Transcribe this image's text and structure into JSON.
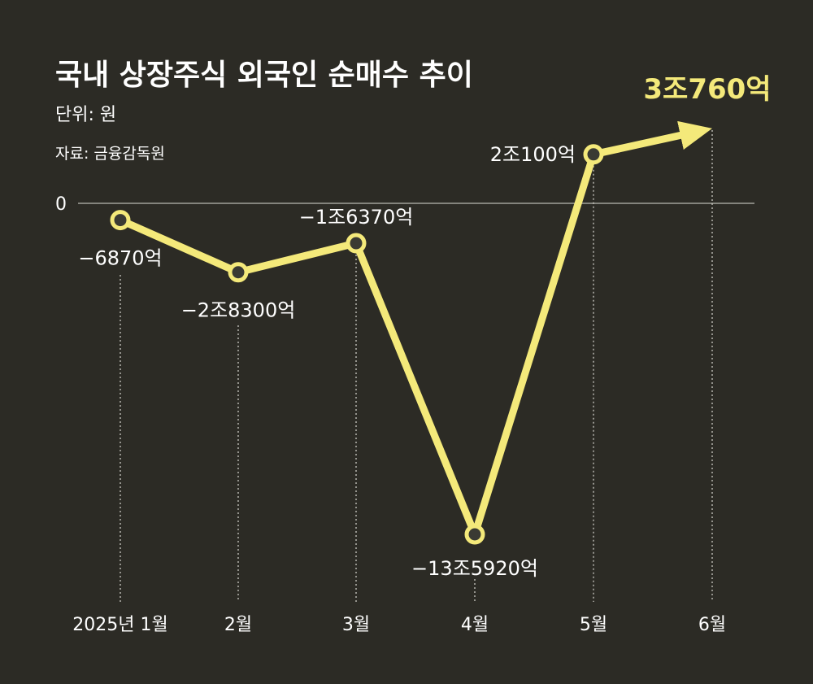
{
  "chart_data": {
    "type": "line",
    "title": "국내 상장주식 외국인 순매수 추이",
    "unit_label": "단위: 원",
    "source_label": "자료: 금융감독원",
    "categories": [
      "2025년 1월",
      "2월",
      "3월",
      "4월",
      "5월",
      "6월"
    ],
    "values": [
      -6870,
      -28300,
      -16370,
      -135920,
      20100,
      30760
    ],
    "value_labels": [
      "−6870억",
      "−2조8300억",
      "−1조6370억",
      "−13조5920억",
      "2조100억",
      "3조760억"
    ],
    "value_unit": "억원",
    "zero_label": "0",
    "grid": false,
    "colors": {
      "line": "#f4e97a",
      "marker_fill": "#3a3a33",
      "background": "#2c2b25",
      "text": "#ffffff",
      "highlight_text": "#f4e97a"
    }
  }
}
